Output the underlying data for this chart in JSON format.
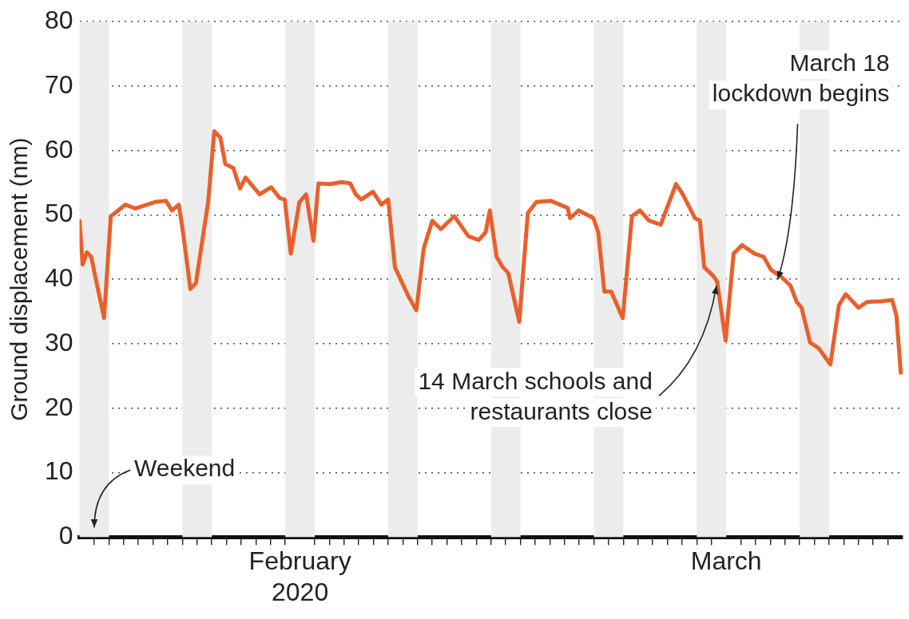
{
  "chart_data": {
    "type": "line",
    "ylabel": "Ground displacement (nm)",
    "xlim": [
      "2020-02-01T00:00",
      "2020-03-28T00:00"
    ],
    "ylim": [
      0,
      80
    ],
    "yticks": [
      0,
      10,
      20,
      30,
      40,
      50,
      60,
      70,
      80
    ],
    "xticks": [
      {
        "value": "2020-02-02",
        "label": null
      },
      {
        "value": "2020-02-03",
        "label": null
      },
      {
        "value": "2020-02-04",
        "label": null
      },
      {
        "value": "2020-02-05",
        "label": null
      },
      {
        "value": "2020-02-06",
        "label": null
      },
      {
        "value": "2020-02-07",
        "label": null
      },
      {
        "value": "2020-02-08",
        "label": null
      },
      {
        "value": "2020-02-09",
        "label": null
      },
      {
        "value": "2020-02-10",
        "label": null
      },
      {
        "value": "2020-02-11",
        "label": null
      },
      {
        "value": "2020-02-12",
        "label": null
      },
      {
        "value": "2020-02-13",
        "label": null
      },
      {
        "value": "2020-02-14",
        "label": null
      },
      {
        "value": "2020-02-15",
        "label": null
      },
      {
        "value": "2020-02-16",
        "label": "February\n2020"
      },
      {
        "value": "2020-02-17",
        "label": null
      },
      {
        "value": "2020-02-18",
        "label": null
      },
      {
        "value": "2020-02-19",
        "label": null
      },
      {
        "value": "2020-02-20",
        "label": null
      },
      {
        "value": "2020-02-21",
        "label": null
      },
      {
        "value": "2020-02-22",
        "label": null
      },
      {
        "value": "2020-02-23",
        "label": null
      },
      {
        "value": "2020-02-24",
        "label": null
      },
      {
        "value": "2020-02-25",
        "label": null
      },
      {
        "value": "2020-02-26",
        "label": null
      },
      {
        "value": "2020-02-27",
        "label": null
      },
      {
        "value": "2020-02-28",
        "label": null
      },
      {
        "value": "2020-02-29",
        "label": null
      },
      {
        "value": "2020-03-01",
        "label": null
      },
      {
        "value": "2020-03-02",
        "label": null
      },
      {
        "value": "2020-03-03",
        "label": null
      },
      {
        "value": "2020-03-04",
        "label": null
      },
      {
        "value": "2020-03-05",
        "label": null
      },
      {
        "value": "2020-03-06",
        "label": null
      },
      {
        "value": "2020-03-07",
        "label": null
      },
      {
        "value": "2020-03-08",
        "label": null
      },
      {
        "value": "2020-03-09",
        "label": null
      },
      {
        "value": "2020-03-10",
        "label": null
      },
      {
        "value": "2020-03-11",
        "label": null
      },
      {
        "value": "2020-03-12",
        "label": null
      },
      {
        "value": "2020-03-13",
        "label": null
      },
      {
        "value": "2020-03-14",
        "label": null
      },
      {
        "value": "2020-03-15",
        "label": null
      },
      {
        "value": "2020-03-16",
        "label": "March"
      },
      {
        "value": "2020-03-17",
        "label": null
      },
      {
        "value": "2020-03-18",
        "label": null
      },
      {
        "value": "2020-03-19",
        "label": null
      },
      {
        "value": "2020-03-20",
        "label": null
      },
      {
        "value": "2020-03-21",
        "label": null
      },
      {
        "value": "2020-03-22",
        "label": null
      },
      {
        "value": "2020-03-23",
        "label": null
      },
      {
        "value": "2020-03-24",
        "label": null
      },
      {
        "value": "2020-03-25",
        "label": null
      },
      {
        "value": "2020-03-26",
        "label": null
      },
      {
        "value": "2020-03-27",
        "label": null
      }
    ],
    "grid": "y",
    "legend": false,
    "marker": "none",
    "line_style": "solid",
    "bands": [
      {
        "axis": "x",
        "from": "2020-02-01",
        "to": "2020-02-03",
        "label": null,
        "color": "#ececec"
      },
      {
        "axis": "x",
        "from": "2020-02-08",
        "to": "2020-02-10",
        "label": null,
        "color": "#ececec"
      },
      {
        "axis": "x",
        "from": "2020-02-15",
        "to": "2020-02-17",
        "label": null,
        "color": "#ececec"
      },
      {
        "axis": "x",
        "from": "2020-02-22",
        "to": "2020-02-24",
        "label": null,
        "color": "#ececec"
      },
      {
        "axis": "x",
        "from": "2020-02-29",
        "to": "2020-03-02",
        "label": null,
        "color": "#ececec"
      },
      {
        "axis": "x",
        "from": "2020-03-07",
        "to": "2020-03-09",
        "label": null,
        "color": "#ececec"
      },
      {
        "axis": "x",
        "from": "2020-03-14",
        "to": "2020-03-16",
        "label": null,
        "color": "#ececec"
      },
      {
        "axis": "x",
        "from": "2020-03-21",
        "to": "2020-03-23",
        "label": null,
        "color": "#ececec"
      }
    ],
    "annotations": [
      "Weekend",
      {
        "text": "14 March schools and\nrestaurants close",
        "x": "2020-03-15T08:00",
        "y": 39
      },
      {
        "text": "March 18\nlockdown begins",
        "x": "2020-03-19T12:00",
        "y": 40
      }
    ],
    "series": [
      {
        "color": "#e8602c",
        "x": [
          "2020-02-01T00:00",
          "2020-02-01T05:00",
          "2020-02-01T12:00",
          "2020-02-01T19:00",
          "2020-02-02T02:00",
          "2020-02-02T16:00",
          "2020-02-03T03:00",
          "2020-02-03T10:00",
          "2020-02-04T03:00",
          "2020-02-04T19:00",
          "2020-02-06T03:00",
          "2020-02-06T21:00",
          "2020-02-07T07:00",
          "2020-02-07T18:00",
          "2020-02-08T01:00",
          "2020-02-08T13:00",
          "2020-02-08T22:00",
          "2020-02-09T18:00",
          "2020-02-10T04:00",
          "2020-02-10T14:00",
          "2020-02-10T22:00",
          "2020-02-11T11:00",
          "2020-02-11T22:00",
          "2020-02-12T07:00",
          "2020-02-13T06:00",
          "2020-02-14T01:00",
          "2020-02-14T15:00",
          "2020-02-14T23:00",
          "2020-02-15T09:00",
          "2020-02-15T23:00",
          "2020-02-16T10:00",
          "2020-02-16T22:00",
          "2020-02-17T06:00",
          "2020-02-18T02:00",
          "2020-02-18T20:00",
          "2020-02-19T10:00",
          "2020-02-19T19:00",
          "2020-02-20T04:00",
          "2020-02-20T23:00",
          "2020-02-21T13:00",
          "2020-02-22T00:00",
          "2020-02-22T11:00",
          "2020-02-23T01:00",
          "2020-02-23T10:00",
          "2020-02-23T22:00",
          "2020-02-24T10:00",
          "2020-02-25T00:00",
          "2020-02-25T14:00",
          "2020-02-26T12:00",
          "2020-02-27T11:00",
          "2020-02-28T04:00",
          "2020-02-28T15:00",
          "2020-02-28T22:00",
          "2020-02-29T09:00",
          "2020-02-29T19:00",
          "2020-03-01T04:00",
          "2020-03-01T22:00",
          "2020-03-02T12:00",
          "2020-03-03T02:00",
          "2020-03-04T01:00",
          "2020-03-05T05:00",
          "2020-03-05T09:00",
          "2020-03-05T23:00",
          "2020-03-06T23:00",
          "2020-03-07T07:00",
          "2020-03-07T17:00",
          "2020-03-08T04:00",
          "2020-03-08T23:00",
          "2020-03-09T14:00",
          "2020-03-10T03:00",
          "2020-03-10T18:00",
          "2020-03-11T13:00",
          "2020-03-12T14:00",
          "2020-03-13T01:00",
          "2020-03-13T21:00",
          "2020-03-14T05:00",
          "2020-03-14T12:00",
          "2020-03-15T02:00",
          "2020-03-15T09:00",
          "2020-03-15T23:00",
          "2020-03-16T12:00",
          "2020-03-17T02:00",
          "2020-03-17T22:00",
          "2020-03-18T13:00",
          "2020-03-19T01:00",
          "2020-03-19T19:00",
          "2020-03-20T09:00",
          "2020-03-20T19:00",
          "2020-03-21T03:00",
          "2020-03-21T17:00",
          "2020-03-22T07:00",
          "2020-03-23T02:00",
          "2020-03-23T16:00",
          "2020-03-24T03:00",
          "2020-03-25T00:00",
          "2020-03-25T14:00",
          "2020-03-26T13:00",
          "2020-03-27T07:00",
          "2020-03-27T14:00",
          "2020-03-27T21:00"
        ],
        "values": [
          49.1,
          42.3,
          44.2,
          43.5,
          40.3,
          34,
          49.8,
          50.3,
          51.6,
          51,
          52,
          52.2,
          50.7,
          51.6,
          47.3,
          38.5,
          39.4,
          52,
          63,
          62,
          57.9,
          57.3,
          54.1,
          55.8,
          53.2,
          54.3,
          52.6,
          52.4,
          44,
          52,
          53.2,
          46,
          54.9,
          54.8,
          55.1,
          54.9,
          53.2,
          52.4,
          53.6,
          51.6,
          52.4,
          41.9,
          39,
          37.2,
          35.2,
          44.8,
          49.1,
          47.8,
          49.8,
          46.7,
          46.1,
          47.3,
          50.7,
          43.5,
          41.9,
          41,
          33.4,
          50.3,
          52,
          52.2,
          51.1,
          49.5,
          50.7,
          49.5,
          47.3,
          38.1,
          38.1,
          34,
          49.8,
          50.7,
          49.1,
          48.5,
          54.8,
          53.2,
          49.5,
          49.1,
          41.9,
          40.6,
          39.7,
          30.5,
          44,
          45.3,
          44,
          43.5,
          41.5,
          40.3,
          39,
          36.5,
          35.6,
          30.2,
          29.3,
          26.8,
          36,
          37.7,
          35.6,
          36.5,
          36.6,
          36.8,
          34.3,
          25.5
        ]
      }
    ]
  }
}
